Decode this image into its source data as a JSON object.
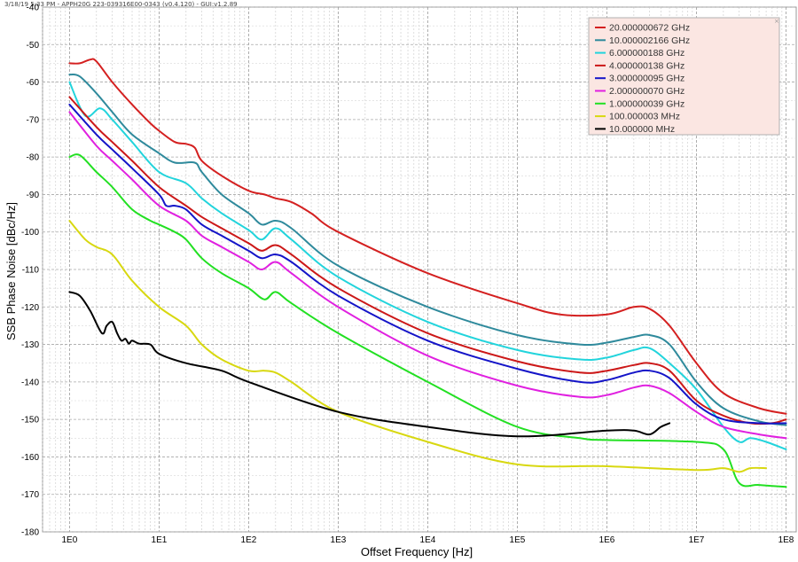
{
  "window": {
    "header": "3/18/19 5:33 PM - APPH20G 223-039316E00-0343 (v0.4.120) - GUI:v1.2.89",
    "close_glyph": "×"
  },
  "chart_data": {
    "type": "line",
    "xlabel": "Offset Frequency [Hz]",
    "ylabel": "SSB Phase Noise [dBc/Hz]",
    "x_scale": "log",
    "xlim": [
      0.5,
      130000000
    ],
    "ylim": [
      -180,
      -40
    ],
    "x_ticks": [
      1,
      10,
      100,
      1000,
      10000,
      100000,
      1000000,
      10000000,
      100000000
    ],
    "x_tick_labels": [
      "1E0",
      "1E1",
      "1E2",
      "1E3",
      "1E4",
      "1E5",
      "1E6",
      "1E7",
      "1E8"
    ],
    "y_ticks": [
      -40,
      -50,
      -60,
      -70,
      -80,
      -90,
      -100,
      -110,
      -120,
      -130,
      -140,
      -150,
      -160,
      -170,
      -180
    ],
    "y_tick_labels": [
      "-40",
      "-50",
      "-60",
      "-70",
      "-80",
      "-90",
      "-100",
      "-110",
      "-120",
      "-130",
      "-140",
      "-150",
      "-160",
      "-170",
      "-180"
    ],
    "grid": true,
    "legend": "top-right",
    "series": [
      {
        "name": "20.000000672 GHz",
        "color": "#d42020",
        "points": [
          [
            1,
            -55
          ],
          [
            1.3,
            -55
          ],
          [
            1.7,
            -54
          ],
          [
            2,
            -54.5
          ],
          [
            3,
            -60
          ],
          [
            5,
            -66
          ],
          [
            8,
            -71
          ],
          [
            10,
            -73
          ],
          [
            15,
            -76
          ],
          [
            20,
            -76.5
          ],
          [
            25,
            -77.5
          ],
          [
            30,
            -81
          ],
          [
            50,
            -85
          ],
          [
            100,
            -89
          ],
          [
            150,
            -90
          ],
          [
            200,
            -91
          ],
          [
            300,
            -92
          ],
          [
            500,
            -95
          ],
          [
            1000,
            -100
          ],
          [
            10000,
            -111
          ],
          [
            100000,
            -119
          ],
          [
            300000,
            -122
          ],
          [
            1000000,
            -122
          ],
          [
            2000000,
            -120
          ],
          [
            3000000,
            -120.5
          ],
          [
            5000000,
            -125
          ],
          [
            10000000,
            -135
          ],
          [
            20000000,
            -143
          ],
          [
            50000000,
            -147
          ],
          [
            100000000,
            -148.5
          ]
        ]
      },
      {
        "name": "10.000002166 GHz",
        "color": "#2f8a9c",
        "points": [
          [
            1,
            -58
          ],
          [
            1.3,
            -58.5
          ],
          [
            2,
            -63
          ],
          [
            3,
            -68
          ],
          [
            5,
            -74
          ],
          [
            10,
            -79
          ],
          [
            15,
            -81.5
          ],
          [
            25,
            -81.5
          ],
          [
            30,
            -84
          ],
          [
            50,
            -90
          ],
          [
            100,
            -95
          ],
          [
            140,
            -98
          ],
          [
            200,
            -97
          ],
          [
            300,
            -99
          ],
          [
            1000,
            -109
          ],
          [
            10000,
            -120
          ],
          [
            100000,
            -127.5
          ],
          [
            500000,
            -130
          ],
          [
            1000000,
            -129.5
          ],
          [
            2000000,
            -128
          ],
          [
            3000000,
            -127.5
          ],
          [
            5000000,
            -130
          ],
          [
            10000000,
            -140
          ],
          [
            20000000,
            -147
          ],
          [
            50000000,
            -150.5
          ],
          [
            100000000,
            -151.5
          ]
        ]
      },
      {
        "name": "6.000000188 GHz",
        "color": "#22d4dc",
        "points": [
          [
            1,
            -60
          ],
          [
            1.5,
            -69
          ],
          [
            2.2,
            -67
          ],
          [
            3,
            -70
          ],
          [
            5,
            -76
          ],
          [
            10,
            -84
          ],
          [
            20,
            -87
          ],
          [
            30,
            -91
          ],
          [
            50,
            -95
          ],
          [
            100,
            -99.5
          ],
          [
            140,
            -102
          ],
          [
            200,
            -99
          ],
          [
            300,
            -102
          ],
          [
            1000,
            -112
          ],
          [
            10000,
            -124
          ],
          [
            100000,
            -131.5
          ],
          [
            500000,
            -134
          ],
          [
            1000000,
            -133.5
          ],
          [
            2000000,
            -131.5
          ],
          [
            3000000,
            -131
          ],
          [
            5000000,
            -135
          ],
          [
            10000000,
            -142
          ],
          [
            20000000,
            -152
          ],
          [
            30000000,
            -156
          ],
          [
            40000000,
            -155
          ],
          [
            60000000,
            -156
          ],
          [
            100000000,
            -158
          ]
        ]
      },
      {
        "name": "4.000000138 GHz",
        "color": "#cc1818",
        "points": [
          [
            1,
            -64
          ],
          [
            2,
            -72
          ],
          [
            3,
            -76
          ],
          [
            5,
            -81
          ],
          [
            10,
            -88
          ],
          [
            20,
            -93
          ],
          [
            30,
            -96
          ],
          [
            50,
            -99
          ],
          [
            100,
            -103
          ],
          [
            140,
            -105
          ],
          [
            200,
            -103.5
          ],
          [
            300,
            -106
          ],
          [
            1000,
            -115
          ],
          [
            10000,
            -127
          ],
          [
            100000,
            -134.5
          ],
          [
            500000,
            -137.5
          ],
          [
            1000000,
            -137
          ],
          [
            2000000,
            -135.5
          ],
          [
            3000000,
            -135
          ],
          [
            5000000,
            -137
          ],
          [
            10000000,
            -145
          ],
          [
            20000000,
            -149
          ],
          [
            40000000,
            -151
          ],
          [
            70000000,
            -151
          ],
          [
            100000000,
            -150
          ]
        ]
      },
      {
        "name": "3.000000095 GHz",
        "color": "#1414c8",
        "points": [
          [
            1,
            -66
          ],
          [
            2,
            -74
          ],
          [
            3,
            -78
          ],
          [
            5,
            -83
          ],
          [
            10,
            -90
          ],
          [
            12,
            -93
          ],
          [
            15,
            -93
          ],
          [
            20,
            -94
          ],
          [
            30,
            -98
          ],
          [
            50,
            -101
          ],
          [
            100,
            -105
          ],
          [
            140,
            -107
          ],
          [
            200,
            -106
          ],
          [
            300,
            -108
          ],
          [
            1000,
            -117
          ],
          [
            10000,
            -129
          ],
          [
            100000,
            -136.5
          ],
          [
            500000,
            -140
          ],
          [
            1000000,
            -139.5
          ],
          [
            2000000,
            -137.5
          ],
          [
            3000000,
            -137
          ],
          [
            5000000,
            -139
          ],
          [
            10000000,
            -146
          ],
          [
            20000000,
            -150
          ],
          [
            50000000,
            -151
          ],
          [
            100000000,
            -151
          ]
        ]
      },
      {
        "name": "2.000000070 GHz",
        "color": "#e020e0",
        "points": [
          [
            1,
            -68
          ],
          [
            2,
            -77
          ],
          [
            3,
            -81
          ],
          [
            5,
            -86
          ],
          [
            10,
            -93
          ],
          [
            20,
            -97
          ],
          [
            30,
            -101
          ],
          [
            50,
            -104
          ],
          [
            100,
            -108
          ],
          [
            140,
            -110
          ],
          [
            200,
            -108
          ],
          [
            300,
            -111
          ],
          [
            1000,
            -120
          ],
          [
            10000,
            -133
          ],
          [
            100000,
            -141
          ],
          [
            500000,
            -144
          ],
          [
            1000000,
            -143.5
          ],
          [
            2000000,
            -141.5
          ],
          [
            3000000,
            -141
          ],
          [
            5000000,
            -143
          ],
          [
            10000000,
            -148
          ],
          [
            20000000,
            -152
          ],
          [
            50000000,
            -154
          ],
          [
            100000000,
            -155
          ]
        ]
      },
      {
        "name": "1.000000039 GHz",
        "color": "#22e022",
        "points": [
          [
            1,
            -80
          ],
          [
            1.3,
            -79.5
          ],
          [
            2,
            -84
          ],
          [
            3,
            -88
          ],
          [
            5,
            -94
          ],
          [
            8,
            -97
          ],
          [
            10,
            -98
          ],
          [
            15,
            -100
          ],
          [
            20,
            -102
          ],
          [
            30,
            -107
          ],
          [
            50,
            -111
          ],
          [
            100,
            -115
          ],
          [
            150,
            -118
          ],
          [
            200,
            -116
          ],
          [
            300,
            -119
          ],
          [
            1000,
            -127
          ],
          [
            10000,
            -140
          ],
          [
            100000,
            -152
          ],
          [
            500000,
            -155
          ],
          [
            1000000,
            -155.5
          ],
          [
            10000000,
            -156
          ],
          [
            20000000,
            -158
          ],
          [
            30000000,
            -167
          ],
          [
            50000000,
            -167.5
          ],
          [
            100000000,
            -168
          ]
        ]
      },
      {
        "name": "100.000003 MHz",
        "color": "#d8d810",
        "points": [
          [
            1,
            -97
          ],
          [
            1.5,
            -102
          ],
          [
            2,
            -104
          ],
          [
            3,
            -106
          ],
          [
            5,
            -113
          ],
          [
            10,
            -120
          ],
          [
            20,
            -125
          ],
          [
            30,
            -130
          ],
          [
            50,
            -134
          ],
          [
            100,
            -137
          ],
          [
            150,
            -137
          ],
          [
            200,
            -137.5
          ],
          [
            300,
            -140
          ],
          [
            1000,
            -148
          ],
          [
            10000,
            -156
          ],
          [
            100000,
            -162
          ],
          [
            1000000,
            -162.5
          ],
          [
            10000000,
            -163.5
          ],
          [
            20000000,
            -163
          ],
          [
            30000000,
            -164
          ],
          [
            40000000,
            -163
          ],
          [
            60000000,
            -163
          ]
        ]
      },
      {
        "name": "10.000000 MHz",
        "color": "#000000",
        "points": [
          [
            1,
            -116
          ],
          [
            1.3,
            -117
          ],
          [
            1.7,
            -121
          ],
          [
            2.3,
            -127
          ],
          [
            2.6,
            -125
          ],
          [
            3,
            -124
          ],
          [
            3.4,
            -127
          ],
          [
            3.8,
            -129
          ],
          [
            4.2,
            -128.5
          ],
          [
            4.6,
            -129.8
          ],
          [
            5,
            -129
          ],
          [
            6,
            -129.8
          ],
          [
            8,
            -130
          ],
          [
            10,
            -132.5
          ],
          [
            20,
            -135
          ],
          [
            50,
            -137
          ],
          [
            100,
            -140
          ],
          [
            1000,
            -148
          ],
          [
            10000,
            -152
          ],
          [
            100000,
            -154.5
          ],
          [
            1000000,
            -153
          ],
          [
            2000000,
            -153
          ],
          [
            3000000,
            -154
          ],
          [
            4000000,
            -152
          ],
          [
            5000000,
            -151
          ]
        ]
      }
    ]
  }
}
